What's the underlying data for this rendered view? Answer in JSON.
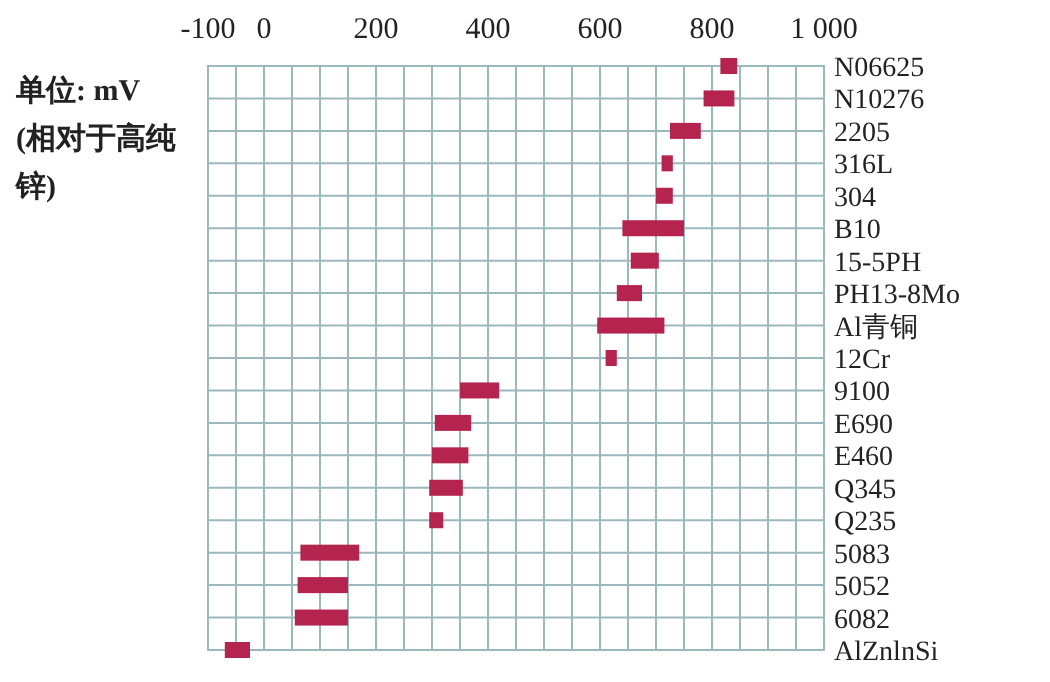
{
  "chart_data": {
    "type": "bar",
    "orientation": "horizontal",
    "categories": [
      "N06625",
      "N10276",
      "2205",
      "316L",
      "304",
      "B10",
      "15-5PH",
      "PH13-8Mo",
      "Al青铜",
      "12Cr",
      "9100",
      "E690",
      "E460",
      "Q345",
      "Q235",
      "5083",
      "5052",
      "6082",
      "AlZnlnSi"
    ],
    "base": [
      815,
      785,
      725,
      710,
      700,
      640,
      655,
      630,
      595,
      610,
      350,
      305,
      300,
      295,
      295,
      65,
      60,
      55,
      -70
    ],
    "values": [
      30,
      55,
      55,
      20,
      30,
      110,
      50,
      45,
      120,
      20,
      70,
      65,
      65,
      60,
      25,
      105,
      90,
      95,
      45
    ],
    "color": "#b5234f",
    "xlim": [
      -100,
      1000
    ],
    "xticks": [
      -100,
      {
        "value": -50,
        "label": null
      },
      0,
      {
        "value": 50,
        "label": null
      },
      {
        "value": 100,
        "label": null
      },
      {
        "value": 150,
        "label": null
      },
      200,
      {
        "value": 250,
        "label": null
      },
      {
        "value": 300,
        "label": null
      },
      {
        "value": 350,
        "label": null
      },
      400,
      {
        "value": 450,
        "label": null
      },
      {
        "value": 500,
        "label": null
      },
      {
        "value": 550,
        "label": null
      },
      600,
      {
        "value": 650,
        "label": null
      },
      {
        "value": 700,
        "label": null
      },
      {
        "value": 750,
        "label": null
      },
      800,
      {
        "value": 850,
        "label": null
      },
      {
        "value": 900,
        "label": null
      },
      {
        "value": 950,
        "label": null
      },
      {
        "value": 1000,
        "label": "1 000"
      }
    ],
    "grid": true,
    "annotations": [
      "单位: mV (相对于高纯锌)"
    ]
  }
}
